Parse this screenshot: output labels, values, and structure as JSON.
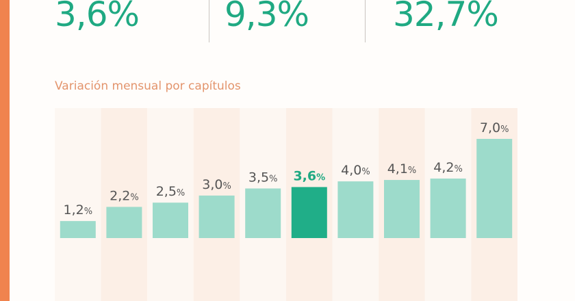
{
  "stats": [
    {
      "value": "3,6%"
    },
    {
      "value": "9,3%"
    },
    {
      "value": "32,7%"
    }
  ],
  "colors": {
    "accent": "#f0834e",
    "primary": "#1fa982",
    "bar": "#9ddbcb",
    "bar_highlight": "#20ae88",
    "label": "#555555"
  },
  "chart_data": {
    "type": "bar",
    "title": "Variación mensual por capítulos",
    "categories": [
      "",
      "",
      "",
      "",
      "",
      "",
      "",
      "",
      "",
      ""
    ],
    "values": [
      1.2,
      2.2,
      2.5,
      3.0,
      3.5,
      3.6,
      4.0,
      4.1,
      4.2,
      7.0
    ],
    "labels": [
      "1,2",
      "2,2",
      "2,5",
      "3,0",
      "3,5",
      "3,6",
      "4,0",
      "4,1",
      "4,2",
      "7,0"
    ],
    "unit": "%",
    "highlight_index": 5,
    "grid": false,
    "ylim": [
      0,
      7.0
    ]
  }
}
